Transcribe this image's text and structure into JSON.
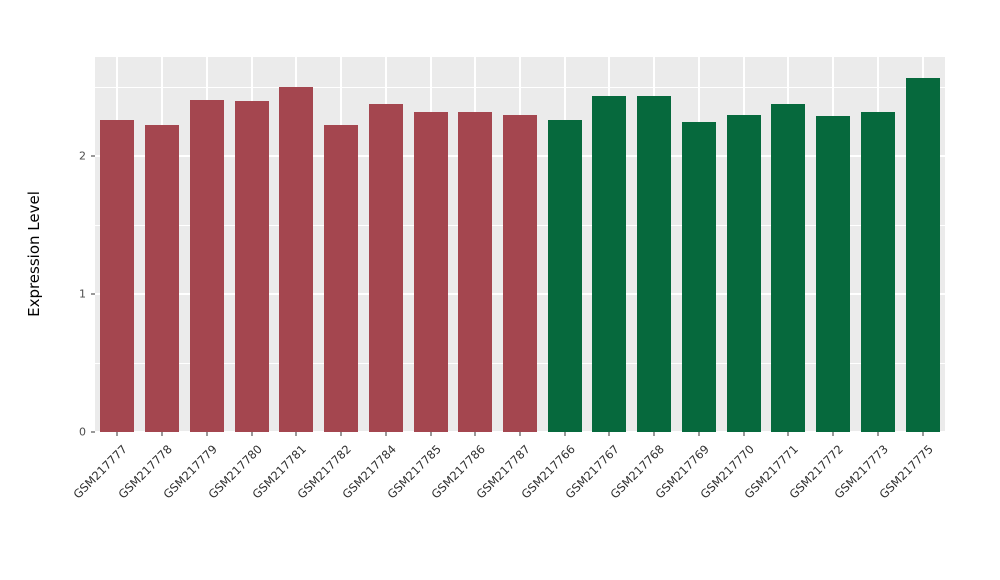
{
  "chart_data": {
    "type": "bar",
    "title": "",
    "xlabel": "",
    "ylabel": "Expression Level",
    "categories": [
      "GSM217777",
      "GSM217778",
      "GSM217779",
      "GSM217780",
      "GSM217781",
      "GSM217782",
      "GSM217784",
      "GSM217785",
      "GSM217786",
      "GSM217787",
      "GSM217766",
      "GSM217767",
      "GSM217768",
      "GSM217769",
      "GSM217770",
      "GSM217771",
      "GSM217772",
      "GSM217773",
      "GSM217775"
    ],
    "values": [
      2.26,
      2.23,
      2.41,
      2.4,
      2.5,
      2.23,
      2.38,
      2.32,
      2.32,
      2.3,
      2.26,
      2.44,
      2.44,
      2.25,
      2.3,
      2.38,
      2.29,
      2.32,
      2.57
    ],
    "bar_color_index": [
      0,
      0,
      0,
      0,
      0,
      0,
      0,
      0,
      0,
      0,
      1,
      1,
      1,
      1,
      1,
      1,
      1,
      1,
      1
    ],
    "palette": [
      "#A4464F",
      "#06693D"
    ],
    "ylim": [
      0,
      2.72
    ],
    "yticks": [
      0,
      1,
      2
    ],
    "yticks_minor": [
      0.5,
      1.5,
      2.5
    ],
    "grid": "on",
    "legend": "none",
    "panel_background": "#EBEBEB",
    "gridline_color": "#ffffff"
  }
}
